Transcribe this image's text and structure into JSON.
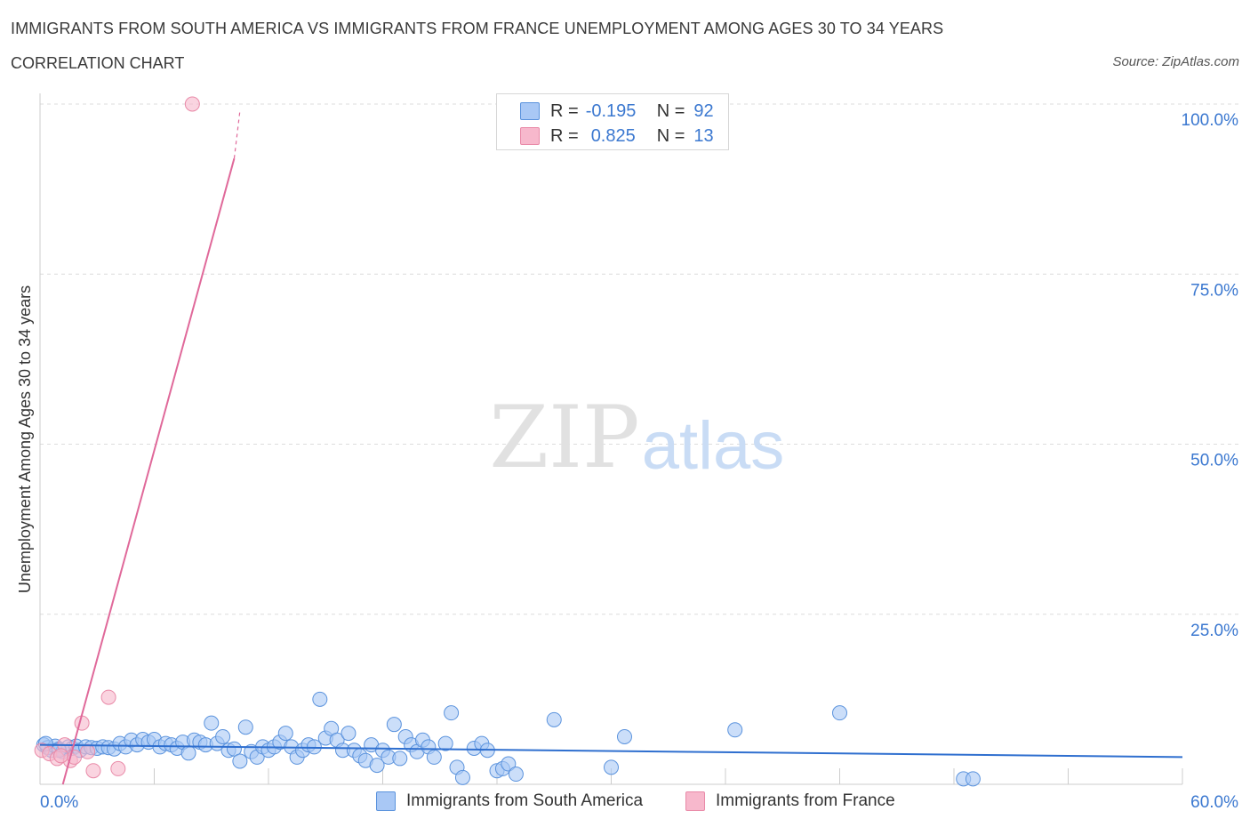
{
  "header": {
    "title": "IMMIGRANTS FROM SOUTH AMERICA VS IMMIGRANTS FROM FRANCE UNEMPLOYMENT AMONG AGES 30 TO 34 YEARS",
    "subtitle": "CORRELATION CHART",
    "source": "Source: ZipAtlas.com"
  },
  "watermark": {
    "zip": "ZIP",
    "atlas": "atlas"
  },
  "colors": {
    "blue_fill": "#a9c8f5",
    "blue_stroke": "#5b93dd",
    "blue_line": "#2f6fcf",
    "pink_fill": "#f7b8cc",
    "pink_stroke": "#e98aa8",
    "pink_line": "#e0699a",
    "axis_text": "#3b78d0",
    "grid": "#dcdcdc"
  },
  "legend": {
    "r_label": "R =",
    "n_label": "N =",
    "series": [
      {
        "r": "-0.195",
        "n": "92"
      },
      {
        "r": "0.825",
        "n": "13"
      }
    ]
  },
  "chart_data": {
    "type": "scatter",
    "title": "IMMIGRANTS FROM SOUTH AMERICA VS IMMIGRANTS FROM FRANCE UNEMPLOYMENT AMONG AGES 30 TO 34 YEARS",
    "xlabel": "",
    "ylabel": "Unemployment Among Ages 30 to 34 years",
    "xlim": [
      0,
      60
    ],
    "ylim": [
      0,
      100
    ],
    "x_tick_labels": [
      "0.0%",
      "60.0%"
    ],
    "y_ticks": [
      25,
      50,
      75,
      100
    ],
    "y_tick_labels": [
      "25.0%",
      "50.0%",
      "75.0%",
      "100.0%"
    ],
    "grid": true,
    "legend_position": "bottom",
    "series": [
      {
        "name": "Immigrants from South America",
        "r": -0.195,
        "n": 92,
        "trend": {
          "x": [
            0,
            60
          ],
          "y": [
            5.8,
            4.0
          ]
        },
        "points": [
          [
            0.2,
            5.8
          ],
          [
            0.4,
            5.4
          ],
          [
            0.6,
            5.0
          ],
          [
            0.8,
            5.6
          ],
          [
            1.0,
            5.2
          ],
          [
            1.2,
            4.8
          ],
          [
            1.5,
            5.5
          ],
          [
            1.7,
            5.3
          ],
          [
            1.9,
            5.6
          ],
          [
            2.1,
            5.0
          ],
          [
            2.4,
            5.5
          ],
          [
            2.7,
            5.4
          ],
          [
            3.0,
            5.3
          ],
          [
            3.3,
            5.5
          ],
          [
            3.6,
            5.4
          ],
          [
            3.9,
            5.2
          ],
          [
            4.2,
            6.0
          ],
          [
            4.5,
            5.5
          ],
          [
            4.8,
            6.5
          ],
          [
            5.1,
            5.8
          ],
          [
            5.4,
            6.6
          ],
          [
            5.7,
            6.2
          ],
          [
            6.0,
            6.6
          ],
          [
            6.3,
            5.5
          ],
          [
            6.6,
            6.0
          ],
          [
            6.9,
            5.8
          ],
          [
            7.2,
            5.3
          ],
          [
            7.5,
            6.2
          ],
          [
            7.8,
            4.6
          ],
          [
            8.1,
            6.5
          ],
          [
            8.4,
            6.2
          ],
          [
            8.7,
            5.8
          ],
          [
            9.0,
            9.0
          ],
          [
            9.3,
            6.0
          ],
          [
            9.6,
            7.0
          ],
          [
            9.9,
            5.0
          ],
          [
            10.2,
            5.2
          ],
          [
            10.5,
            3.4
          ],
          [
            10.8,
            8.4
          ],
          [
            11.1,
            4.8
          ],
          [
            11.4,
            4.0
          ],
          [
            11.7,
            5.5
          ],
          [
            12.0,
            5.0
          ],
          [
            12.3,
            5.5
          ],
          [
            12.6,
            6.2
          ],
          [
            12.9,
            7.5
          ],
          [
            13.2,
            5.5
          ],
          [
            13.5,
            4.0
          ],
          [
            13.8,
            5.0
          ],
          [
            14.1,
            5.8
          ],
          [
            14.4,
            5.5
          ],
          [
            14.7,
            12.5
          ],
          [
            15.0,
            6.8
          ],
          [
            15.3,
            8.2
          ],
          [
            15.6,
            6.5
          ],
          [
            15.9,
            5.0
          ],
          [
            16.2,
            7.5
          ],
          [
            16.5,
            5.0
          ],
          [
            16.8,
            4.2
          ],
          [
            17.1,
            3.5
          ],
          [
            17.4,
            5.8
          ],
          [
            17.7,
            2.8
          ],
          [
            18.0,
            5.0
          ],
          [
            18.3,
            4.0
          ],
          [
            18.6,
            8.8
          ],
          [
            18.9,
            3.8
          ],
          [
            19.2,
            7.0
          ],
          [
            19.5,
            5.8
          ],
          [
            19.8,
            4.8
          ],
          [
            20.1,
            6.5
          ],
          [
            20.4,
            5.5
          ],
          [
            20.7,
            4.0
          ],
          [
            21.3,
            6.0
          ],
          [
            21.6,
            10.5
          ],
          [
            21.9,
            2.5
          ],
          [
            22.2,
            1.0
          ],
          [
            22.8,
            5.3
          ],
          [
            23.2,
            6.0
          ],
          [
            23.5,
            5.0
          ],
          [
            24.0,
            2.0
          ],
          [
            24.3,
            2.3
          ],
          [
            24.6,
            3.0
          ],
          [
            25.0,
            1.5
          ],
          [
            27.0,
            9.5
          ],
          [
            30.0,
            2.5
          ],
          [
            30.7,
            7.0
          ],
          [
            36.5,
            8.0
          ],
          [
            42.0,
            10.5
          ],
          [
            48.5,
            0.8
          ],
          [
            49.0,
            0.8
          ],
          [
            0.3,
            6.0
          ],
          [
            1.0,
            5.0
          ]
        ]
      },
      {
        "name": "Immigrants from France",
        "r": 0.825,
        "n": 13,
        "trend": {
          "x": [
            1.2,
            10.2
          ],
          "y": [
            0,
            92
          ]
        },
        "trend_dashed": {
          "x": [
            10.2,
            10.5
          ],
          "y": [
            92,
            99
          ]
        },
        "points": [
          [
            0.1,
            5.0
          ],
          [
            0.5,
            4.5
          ],
          [
            0.9,
            3.8
          ],
          [
            1.3,
            5.8
          ],
          [
            1.6,
            3.5
          ],
          [
            1.8,
            4.0
          ],
          [
            2.2,
            9.0
          ],
          [
            2.5,
            4.8
          ],
          [
            2.8,
            2.0
          ],
          [
            3.6,
            12.8
          ],
          [
            4.1,
            2.3
          ],
          [
            8.0,
            100.0
          ],
          [
            1.1,
            4.2
          ]
        ]
      }
    ]
  }
}
